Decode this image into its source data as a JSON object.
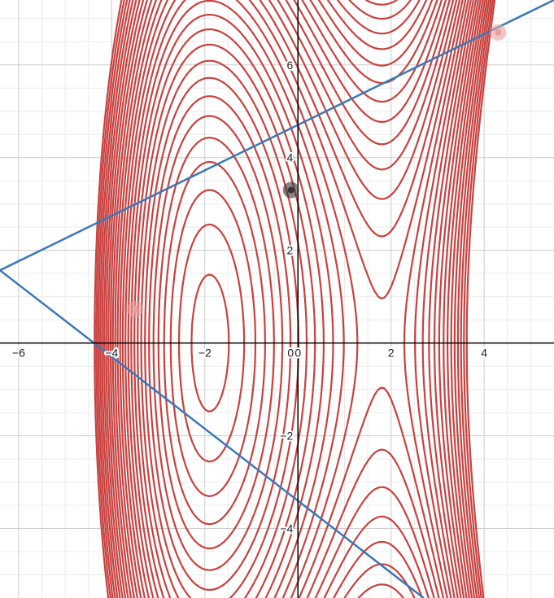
{
  "chart_data": {
    "type": "line",
    "title": "",
    "xlabel": "",
    "ylabel": "",
    "xlim": [
      -6.4,
      5.5
    ],
    "ylim": [
      -5.5,
      7.4
    ],
    "grid": true,
    "x_tick_labels": [
      "-6",
      "-4",
      "-2",
      "0",
      "2",
      "4"
    ],
    "y_tick_labels": [
      "-4",
      "-2",
      "2",
      "4",
      "6"
    ],
    "contour_field": {
      "description_expression": "y^2 + (x+3/4)^2 ... shaped family with saddle near x = 1.9",
      "saddle_x": 1.9,
      "center_x": -1.9
    },
    "series": [
      {
        "values": [
          [
            -6.4,
            1.57
          ],
          [
            5.5,
            7.4
          ]
        ]
      },
      {
        "values": [
          [
            -6.4,
            1.57
          ],
          [
            2.7,
            -5.5
          ]
        ]
      }
    ],
    "points": [
      {
        "x": -3.5,
        "y": 0.73,
        "color": "#e8a0a0"
      },
      {
        "x": -0.15,
        "y": 3.3,
        "color": "#333333"
      },
      {
        "x": 4.3,
        "y": 6.7,
        "color": "#e8a0a0"
      }
    ],
    "colors": {
      "contour": "#c9413f",
      "line": "#3a78b8",
      "grid_major": "#cccccc",
      "grid_minor": "#ececec",
      "axis": "#000000"
    }
  }
}
